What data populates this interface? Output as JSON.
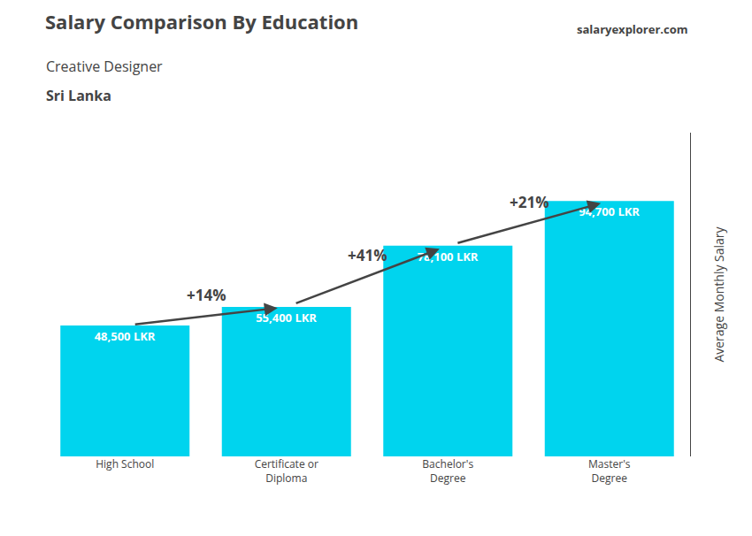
{
  "chart_data": {
    "type": "bar",
    "title": "Salary Comparison By Education",
    "subtitle": "Creative Designer",
    "annotations": [
      "Sri Lanka",
      "salaryexplorer.com"
    ],
    "pct_changes": [
      "+14%",
      "+41%",
      "+21%"
    ],
    "ylabel": "Average Monthly Salary",
    "categories": [
      "High School",
      "Certificate or\nDiploma",
      "Bachelor's\nDegree",
      "Master's\nDegree"
    ],
    "values": [
      48500,
      55400,
      78100,
      94700
    ],
    "value_labels": [
      "48,500 LKR",
      "55,400 LKR",
      "78,100 LKR",
      "94,700 LKR"
    ],
    "data_labels": true,
    "color": "#00d4ee",
    "ylim": [
      0,
      120000
    ],
    "tick_labels": "x",
    "grid": false
  }
}
